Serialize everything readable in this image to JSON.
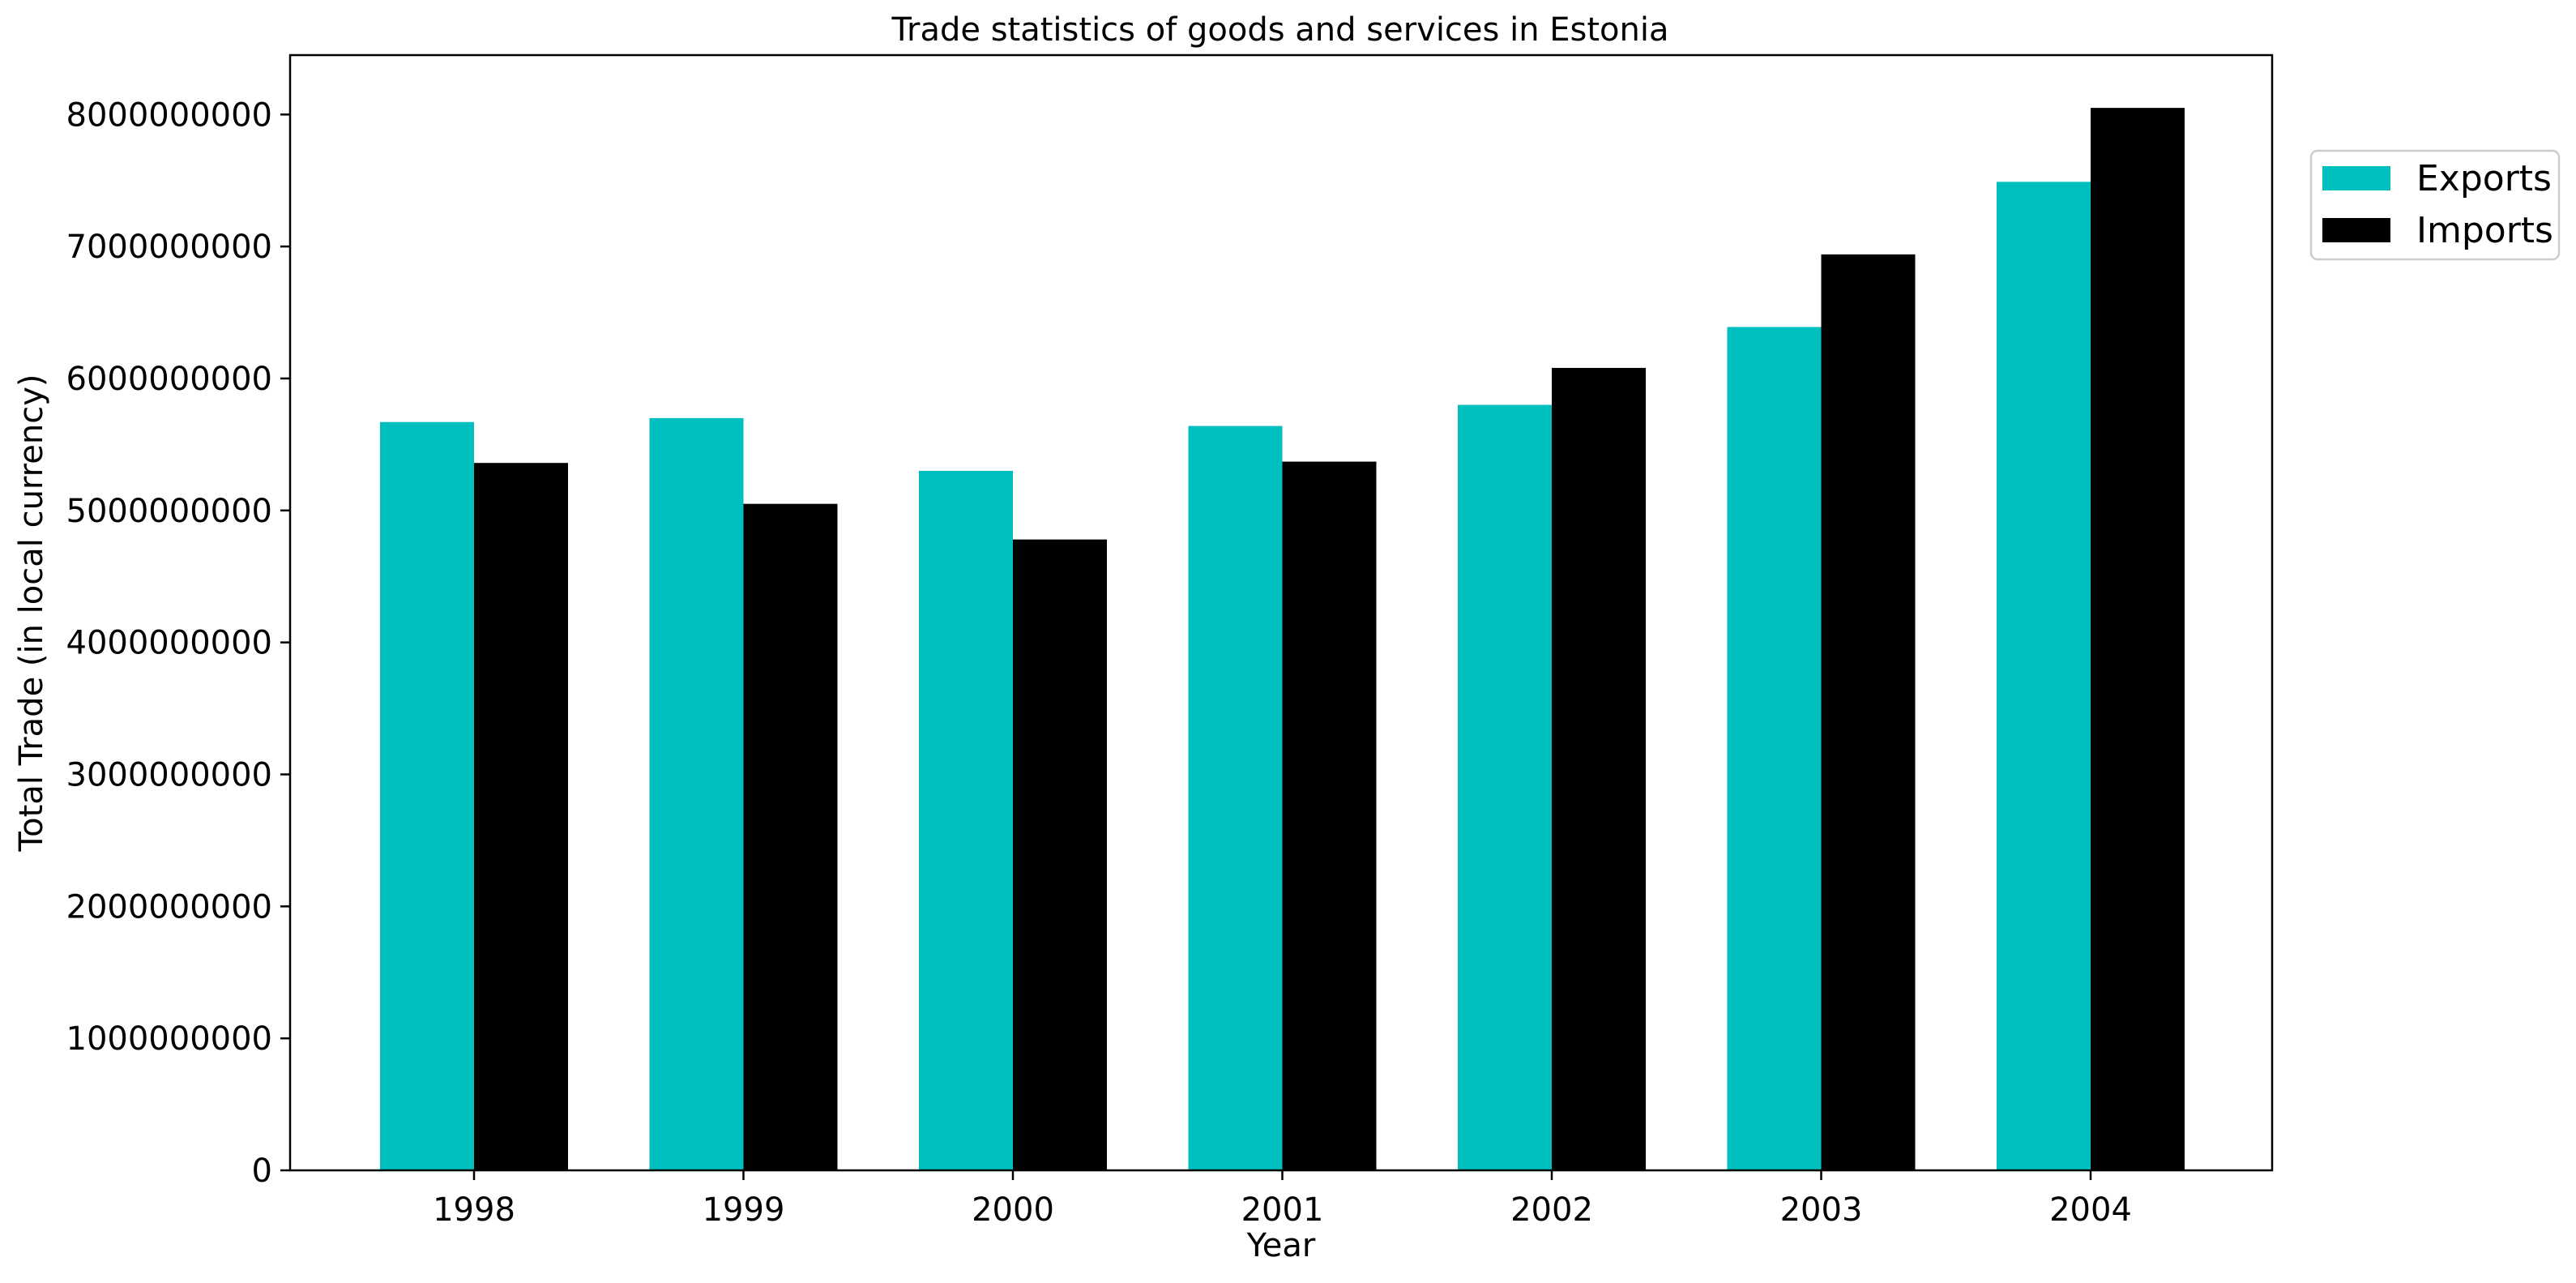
{
  "chart_data": {
    "type": "bar",
    "title": "Trade statistics of goods and services in Estonia",
    "xlabel": "Year",
    "ylabel": "Total Trade (in local currency)",
    "categories": [
      "1998",
      "1999",
      "2000",
      "2001",
      "2002",
      "2003",
      "2004"
    ],
    "series": [
      {
        "name": "Exports",
        "color": "#00bfbf",
        "values": [
          5670000000,
          5700000000,
          5300000000,
          5640000000,
          5800000000,
          6390000000,
          7490000000
        ]
      },
      {
        "name": "Imports",
        "color": "#000000",
        "values": [
          5360000000,
          5050000000,
          4780000000,
          5370000000,
          6080000000,
          6940000000,
          8050000000
        ]
      }
    ],
    "ylim": [
      0,
      8450000000
    ],
    "yticks": [
      0,
      1000000000,
      2000000000,
      3000000000,
      4000000000,
      5000000000,
      6000000000,
      7000000000,
      8000000000
    ],
    "ytick_labels": [
      "0",
      "1000000000",
      "2000000000",
      "3000000000",
      "4000000000",
      "5000000000",
      "6000000000",
      "7000000000",
      "8000000000"
    ],
    "grid": false,
    "legend_position": "upper-right-outside"
  }
}
